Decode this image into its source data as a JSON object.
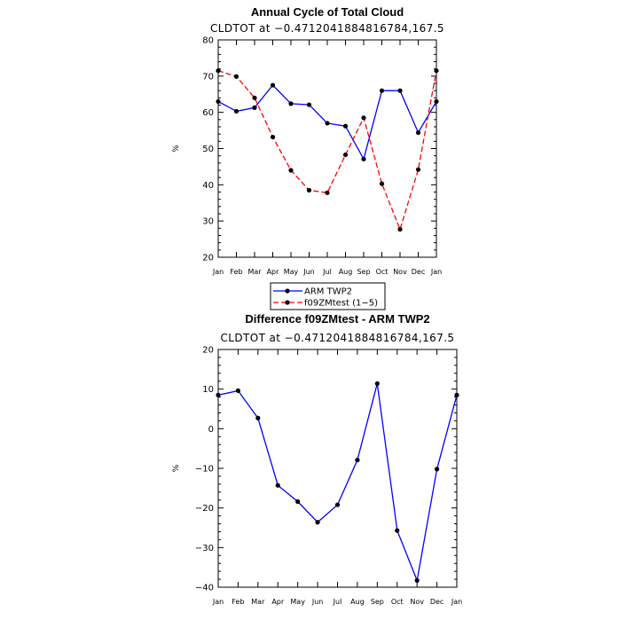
{
  "chart_data": [
    {
      "type": "line",
      "title": "Annual Cycle of Total Cloud",
      "subtitle": "CLDTOT at −0.4712041884816784,167.5",
      "xlabel": "",
      "ylabel": "%",
      "categories": [
        "Jan",
        "Feb",
        "Mar",
        "Apr",
        "May",
        "Jun",
        "Jul",
        "Aug",
        "Sep",
        "Oct",
        "Nov",
        "Dec",
        "Jan"
      ],
      "ylim": [
        20,
        80
      ],
      "yticks": [
        20,
        30,
        40,
        50,
        60,
        70,
        80
      ],
      "ytick_labels": [
        "20",
        "30",
        "40",
        "50",
        "60",
        "70",
        "80"
      ],
      "series": [
        {
          "name": "ARM TWP2",
          "color": "#0000ff",
          "dashed": false,
          "values": [
            63.0,
            60.3,
            61.3,
            67.5,
            62.4,
            62.1,
            57.0,
            56.2,
            47.1,
            66.0,
            66.0,
            54.4,
            63.0
          ]
        },
        {
          "name": "f09ZMtest (1-5)",
          "color": "#ff0000",
          "dashed": true,
          "values": [
            71.5,
            69.9,
            64.0,
            53.2,
            44.0,
            38.5,
            37.8,
            48.3,
            58.5,
            40.3,
            27.7,
            44.2,
            71.5
          ]
        }
      ],
      "legend": [
        "ARM TWP2",
        "f09ZMtest (1−5)"
      ],
      "legend_position": "below"
    },
    {
      "type": "line",
      "title": "Difference f09ZMtest - ARM TWP2",
      "subtitle": "CLDTOT at −0.4712041884816784,167.5",
      "xlabel": "",
      "ylabel": "%",
      "categories": [
        "Jan",
        "Feb",
        "Mar",
        "Apr",
        "May",
        "Jun",
        "Jul",
        "Aug",
        "Sep",
        "Oct",
        "Nov",
        "Dec",
        "Jan"
      ],
      "ylim": [
        -40,
        20
      ],
      "yticks": [
        -40,
        -30,
        -20,
        -10,
        0,
        10,
        20
      ],
      "ytick_labels": [
        "−40",
        "−30",
        "−20",
        "−10",
        "0",
        "10",
        "20"
      ],
      "series": [
        {
          "name": "Difference",
          "color": "#0000ff",
          "dashed": false,
          "values": [
            8.5,
            9.6,
            2.7,
            -14.3,
            -18.4,
            -23.6,
            -19.2,
            -7.9,
            11.4,
            -25.7,
            -38.3,
            -10.2,
            8.5
          ]
        }
      ]
    }
  ]
}
